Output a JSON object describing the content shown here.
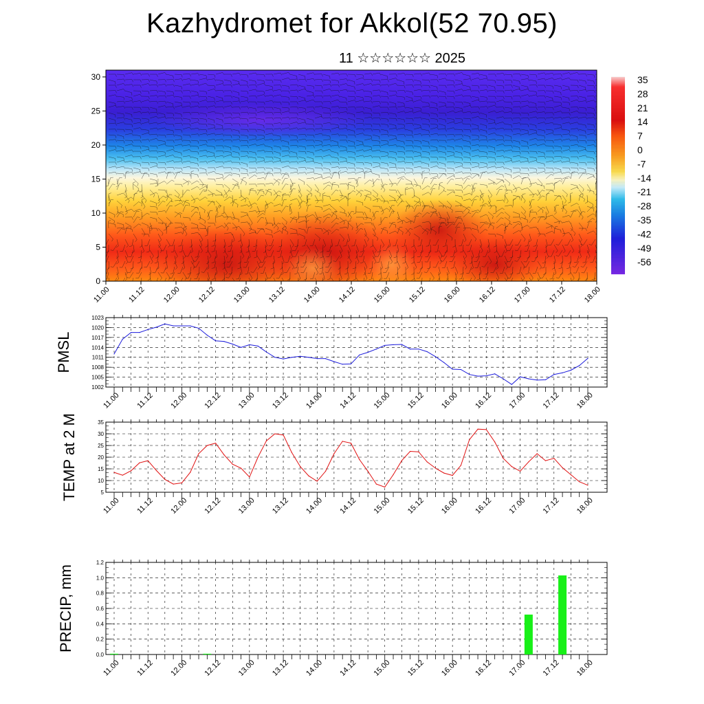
{
  "header": {
    "title": "Kazhydromet for Akkol(52 70.95)",
    "subtitle": "11 ☆☆☆☆☆☆ 2025"
  },
  "colors": {
    "pmsl_line": "#1a1adb",
    "temp_line": "#e01010",
    "precip_bar": "#18f018"
  },
  "chart_data": [
    {
      "type": "heatmap",
      "name": "vertical-section",
      "x_ticks": [
        "11.00",
        "11.12",
        "12.00",
        "12.12",
        "13.00",
        "13.12",
        "14.00",
        "14.12",
        "15.00",
        "15.12",
        "16.00",
        "16.12",
        "17.00",
        "17.12",
        "18.00"
      ],
      "y_ticks": [
        0,
        5,
        10,
        15,
        20,
        25,
        30
      ],
      "ylim": [
        0,
        31
      ],
      "colorbar_labels": [
        "35",
        "28",
        "21",
        "14",
        "7",
        "0",
        "-7",
        "-14",
        "-21",
        "-28",
        "-35",
        "-42",
        "-49",
        "-56"
      ],
      "overlay": "wind barbs"
    },
    {
      "type": "line",
      "ylabel": "PMSL",
      "x_ticks": [
        "11.00",
        "11.12",
        "12.00",
        "12.12",
        "13.00",
        "13.12",
        "14.00",
        "14.12",
        "15.00",
        "15.12",
        "16.00",
        "16.12",
        "17.00",
        "17.12",
        "18.00"
      ],
      "y_ticks": [
        1002,
        1005,
        1008,
        1011,
        1014,
        1017,
        1020,
        1023
      ],
      "ylim": [
        1002,
        1023
      ],
      "x": [
        0,
        3,
        6,
        9,
        12,
        15,
        18,
        21,
        24,
        27,
        30,
        33,
        36,
        39,
        42,
        45,
        48,
        51,
        54,
        57,
        60,
        63,
        66,
        69,
        72,
        75,
        78,
        81,
        84,
        87,
        90,
        93,
        96,
        99,
        102,
        105,
        108,
        111,
        114,
        117,
        120,
        123,
        126,
        129,
        132,
        135,
        138,
        141,
        144,
        147,
        150,
        153,
        156,
        159,
        162,
        165,
        168
      ],
      "values": [
        1012,
        1016.5,
        1018.5,
        1018.5,
        1019.4,
        1020.1,
        1021.1,
        1020.5,
        1020.5,
        1020.5,
        1019.8,
        1017.7,
        1016,
        1015.8,
        1015,
        1014,
        1014.8,
        1014.4,
        1012.6,
        1011,
        1010.5,
        1011,
        1011.3,
        1011,
        1010.6,
        1010.6,
        1009.7,
        1008.9,
        1009,
        1011.7,
        1012.5,
        1013.5,
        1014.6,
        1014.8,
        1014.9,
        1013.5,
        1013.5,
        1012.7,
        1011.2,
        1009.4,
        1007.4,
        1007.3,
        1005.8,
        1005.3,
        1005.4,
        1006,
        1004.5,
        1002.8,
        1005.1,
        1004.5,
        1004.1,
        1004.2,
        1005.8,
        1006.3,
        1007.1,
        1008.5,
        1010.7
      ]
    },
    {
      "type": "line",
      "ylabel": "TEMP at 2 M",
      "x_ticks": [
        "11.00",
        "11.12",
        "12.00",
        "12.12",
        "13.00",
        "13.12",
        "14.00",
        "14.12",
        "15.00",
        "15.12",
        "16.00",
        "16.12",
        "17.00",
        "17.12",
        "18.00"
      ],
      "y_ticks": [
        5,
        10,
        15,
        20,
        25,
        30,
        35
      ],
      "ylim": [
        5,
        35
      ],
      "x": [
        0,
        3,
        6,
        9,
        12,
        15,
        18,
        21,
        24,
        27,
        30,
        33,
        36,
        39,
        42,
        45,
        48,
        51,
        54,
        57,
        60,
        63,
        66,
        69,
        72,
        75,
        78,
        81,
        84,
        87,
        90,
        93,
        96,
        99,
        102,
        105,
        108,
        111,
        114,
        117,
        120,
        123,
        126,
        129,
        132,
        135,
        138,
        141,
        144,
        147,
        150,
        153,
        156,
        159,
        162,
        165,
        168
      ],
      "values": [
        13.5,
        12.3,
        14.2,
        17.6,
        18.5,
        14.3,
        10.5,
        8.5,
        9,
        13.5,
        21.5,
        25,
        26,
        21,
        17,
        15.3,
        11.5,
        20,
        27,
        30,
        29.5,
        22,
        16,
        12,
        9.7,
        14,
        21.5,
        26.8,
        26,
        19,
        14,
        8.5,
        7.2,
        12.5,
        18.5,
        22.5,
        22.3,
        18,
        15.3,
        13.2,
        12.2,
        16.5,
        27.5,
        32,
        31.8,
        26.5,
        19.5,
        16,
        14,
        18,
        21.5,
        18.5,
        19.5,
        15.5,
        12.5,
        9.5,
        8
      ]
    },
    {
      "type": "bar",
      "ylabel": "PRECIP, mm",
      "x_ticks": [
        "11.00",
        "11.12",
        "12.00",
        "12.12",
        "13.00",
        "13.12",
        "14.00",
        "14.12",
        "15.00",
        "15.12",
        "16.00",
        "16.12",
        "17.00",
        "17.12",
        "18.00"
      ],
      "y_ticks": [
        "0.0",
        "0.2",
        "0.4",
        "0.6",
        "0.8",
        "1.0",
        "1.2"
      ],
      "ylim": [
        0,
        1.2
      ],
      "x": [
        0,
        3,
        6,
        9,
        12,
        15,
        18,
        21,
        24,
        27,
        30,
        33,
        36,
        39,
        42,
        45,
        48,
        51,
        54,
        57,
        60,
        63,
        66,
        69,
        72,
        75,
        78,
        81,
        84,
        87,
        90,
        93,
        96,
        99,
        102,
        105,
        108,
        111,
        114,
        117,
        120,
        123,
        126,
        129,
        132,
        135,
        138,
        141,
        144,
        147,
        150,
        153,
        156,
        159,
        162,
        165,
        168
      ],
      "values": [
        0.01,
        0,
        0,
        0,
        0,
        0,
        0,
        0,
        0,
        0,
        0,
        0.01,
        0,
        0,
        0,
        0,
        0,
        0,
        0,
        0,
        0,
        0,
        0,
        0,
        0,
        0,
        0,
        0,
        0,
        0,
        0,
        0,
        0,
        0,
        0,
        0,
        0,
        0,
        0,
        0,
        0,
        0,
        0,
        0,
        0,
        0,
        0,
        0,
        0,
        0.52,
        0,
        0,
        0,
        1.03,
        0,
        0,
        0
      ]
    }
  ]
}
